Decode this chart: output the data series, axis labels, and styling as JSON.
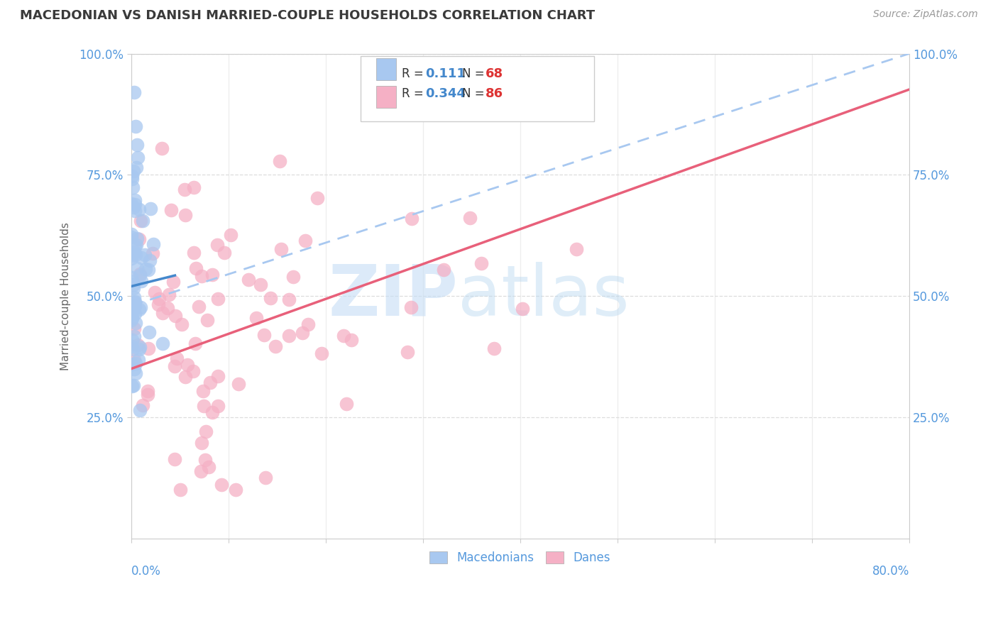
{
  "title": "MACEDONIAN VS DANISH MARRIED-COUPLE HOUSEHOLDS CORRELATION CHART",
  "source": "Source: ZipAtlas.com",
  "ylabel": "Married-couple Households",
  "xlim": [
    0,
    80
  ],
  "ylim": [
    0,
    100
  ],
  "ytick_labels": [
    "25.0%",
    "50.0%",
    "75.0%",
    "100.0%"
  ],
  "ytick_values": [
    25,
    50,
    75,
    100
  ],
  "macedonian_color": "#a8c8f0",
  "danish_color": "#f5b0c5",
  "macedonian_trend_color": "#4488cc",
  "danish_trend_color": "#e8607a",
  "macedonian_dashed_color": "#88bbee",
  "axis_label_color": "#5599dd",
  "title_color": "#3a3a3a",
  "source_color": "#999999",
  "background_color": "#ffffff",
  "grid_color": "#dddddd",
  "watermark_color": "#d8eaf8",
  "legend_R_color": "#4488cc",
  "legend_N_color": "#4488cc",
  "legend_R_val_color": "#4488cc",
  "legend_N_val_color": "#dd3333",
  "watermark": "ZIPAtlas",
  "mac_seed": 12,
  "dan_seed": 7,
  "mac_N": 68,
  "dan_N": 86,
  "mac_R": 0.111,
  "dan_R": 0.344,
  "mac_trend_intercept": 52.0,
  "mac_trend_slope": 0.5,
  "dan_trend_intercept": 35.0,
  "dan_trend_slope": 0.72,
  "mac_dash_intercept": 48.0,
  "mac_dash_slope": 0.65
}
